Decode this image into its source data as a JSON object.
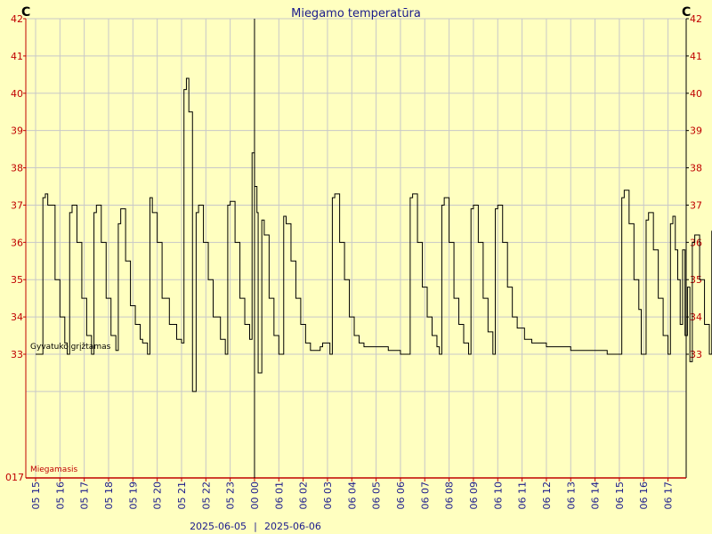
{
  "chart_data": {
    "type": "line",
    "title": "Miegamo temperatūra",
    "unit_left": "C",
    "unit_right": "C",
    "ylim": [
      32,
      42
    ],
    "y_ticks": [
      "42",
      "41",
      "40",
      "39",
      "38",
      "37",
      "36",
      "35",
      "34",
      "33"
    ],
    "y_bottom_label": "017",
    "x_ticks": [
      "05 15",
      "05 16",
      "05 17",
      "05 18",
      "05 19",
      "05 20",
      "05 21",
      "05 22",
      "05 23",
      "00 00",
      "06 01",
      "06 02",
      "06 03",
      "06 04",
      "06 05",
      "06 06",
      "06 07",
      "06 08",
      "06 09",
      "06 10",
      "06 11",
      "06 12",
      "06 13",
      "06 14",
      "06 15",
      "06 16",
      "06 17"
    ],
    "date_left": "2025-06-05",
    "date_right": "2025-06-06",
    "annotation_top": "Gyvatuko grįžtamas",
    "annotation_bottom": "Miegamasis",
    "grid": true,
    "series": [
      {
        "name": "",
        "color": "#000000",
        "points": [
          [
            0.0,
            33.0
          ],
          [
            0.2,
            33.0
          ],
          [
            0.3,
            37.2
          ],
          [
            0.4,
            37.3
          ],
          [
            0.5,
            37.0
          ],
          [
            0.8,
            35.0
          ],
          [
            1.0,
            34.0
          ],
          [
            1.2,
            33.3
          ],
          [
            1.3,
            33.0
          ],
          [
            1.4,
            36.8
          ],
          [
            1.5,
            37.0
          ],
          [
            1.7,
            36.0
          ],
          [
            1.9,
            34.5
          ],
          [
            2.1,
            33.5
          ],
          [
            2.3,
            33.0
          ],
          [
            2.4,
            36.8
          ],
          [
            2.5,
            37.0
          ],
          [
            2.7,
            36.0
          ],
          [
            2.9,
            34.5
          ],
          [
            3.1,
            33.5
          ],
          [
            3.3,
            33.1
          ],
          [
            3.4,
            36.5
          ],
          [
            3.5,
            36.9
          ],
          [
            3.7,
            35.5
          ],
          [
            3.9,
            34.3
          ],
          [
            4.1,
            33.8
          ],
          [
            4.3,
            33.4
          ],
          [
            4.4,
            33.3
          ],
          [
            4.6,
            33.0
          ],
          [
            4.7,
            37.2
          ],
          [
            4.8,
            36.8
          ],
          [
            5.0,
            36.0
          ],
          [
            5.2,
            34.5
          ],
          [
            5.5,
            33.8
          ],
          [
            5.8,
            33.4
          ],
          [
            6.0,
            33.3
          ],
          [
            6.1,
            40.1
          ],
          [
            6.2,
            40.4
          ],
          [
            6.3,
            39.5
          ],
          [
            6.45,
            32.0
          ],
          [
            6.6,
            36.8
          ],
          [
            6.7,
            37.0
          ],
          [
            6.9,
            36.0
          ],
          [
            7.1,
            35.0
          ],
          [
            7.3,
            34.0
          ],
          [
            7.6,
            33.4
          ],
          [
            7.8,
            33.0
          ],
          [
            7.9,
            37.0
          ],
          [
            8.0,
            37.1
          ],
          [
            8.2,
            36.0
          ],
          [
            8.4,
            34.5
          ],
          [
            8.6,
            33.8
          ],
          [
            8.8,
            33.4
          ],
          [
            8.9,
            38.4
          ],
          [
            9.0,
            37.5
          ],
          [
            9.1,
            36.8
          ],
          [
            9.15,
            32.5
          ],
          [
            9.3,
            36.6
          ],
          [
            9.4,
            36.2
          ],
          [
            9.6,
            34.5
          ],
          [
            9.8,
            33.5
          ],
          [
            10.0,
            33.0
          ],
          [
            10.2,
            36.7
          ],
          [
            10.3,
            36.5
          ],
          [
            10.5,
            35.5
          ],
          [
            10.7,
            34.5
          ],
          [
            10.9,
            33.8
          ],
          [
            11.1,
            33.3
          ],
          [
            11.3,
            33.1
          ],
          [
            11.7,
            33.2
          ],
          [
            11.8,
            33.3
          ],
          [
            12.0,
            33.3
          ],
          [
            12.1,
            33.0
          ],
          [
            12.2,
            37.2
          ],
          [
            12.3,
            37.3
          ],
          [
            12.5,
            36.0
          ],
          [
            12.7,
            35.0
          ],
          [
            12.9,
            34.0
          ],
          [
            13.1,
            33.5
          ],
          [
            13.3,
            33.3
          ],
          [
            13.5,
            33.2
          ],
          [
            14.0,
            33.2
          ],
          [
            14.5,
            33.1
          ],
          [
            15.0,
            33.0
          ],
          [
            15.3,
            33.0
          ],
          [
            15.4,
            37.2
          ],
          [
            15.5,
            37.3
          ],
          [
            15.7,
            36.0
          ],
          [
            15.9,
            34.8
          ],
          [
            16.1,
            34.0
          ],
          [
            16.3,
            33.5
          ],
          [
            16.5,
            33.2
          ],
          [
            16.6,
            33.0
          ],
          [
            16.7,
            37.0
          ],
          [
            16.8,
            37.2
          ],
          [
            17.0,
            36.0
          ],
          [
            17.2,
            34.5
          ],
          [
            17.4,
            33.8
          ],
          [
            17.6,
            33.3
          ],
          [
            17.8,
            33.0
          ],
          [
            17.9,
            36.9
          ],
          [
            18.0,
            37.0
          ],
          [
            18.2,
            36.0
          ],
          [
            18.4,
            34.5
          ],
          [
            18.6,
            33.6
          ],
          [
            18.8,
            33.0
          ],
          [
            18.9,
            36.9
          ],
          [
            19.0,
            37.0
          ],
          [
            19.2,
            36.0
          ],
          [
            19.4,
            34.8
          ],
          [
            19.6,
            34.0
          ],
          [
            19.8,
            33.7
          ],
          [
            20.1,
            33.4
          ],
          [
            20.4,
            33.3
          ],
          [
            21.0,
            33.2
          ],
          [
            21.5,
            33.2
          ],
          [
            22.0,
            33.1
          ],
          [
            23.0,
            33.1
          ],
          [
            23.5,
            33.0
          ],
          [
            24.0,
            33.0
          ],
          [
            24.1,
            37.2
          ],
          [
            24.2,
            37.4
          ],
          [
            24.4,
            36.5
          ],
          [
            24.6,
            35.0
          ],
          [
            24.8,
            34.2
          ],
          [
            24.9,
            33.0
          ],
          [
            25.1,
            36.6
          ],
          [
            25.2,
            36.8
          ],
          [
            25.4,
            35.8
          ],
          [
            25.6,
            34.5
          ],
          [
            25.8,
            33.5
          ],
          [
            26.0,
            33.0
          ],
          [
            26.1,
            36.5
          ],
          [
            26.2,
            36.7
          ],
          [
            26.3,
            35.8
          ],
          [
            26.4,
            35.0
          ],
          [
            26.5,
            33.8
          ],
          [
            26.6,
            35.8
          ],
          [
            26.7,
            33.5
          ],
          [
            26.8,
            34.8
          ],
          [
            26.9,
            32.8
          ],
          [
            27.0,
            36.0
          ],
          [
            27.1,
            36.2
          ],
          [
            27.3,
            35.0
          ],
          [
            27.5,
            33.8
          ],
          [
            27.7,
            33.0
          ],
          [
            27.8,
            36.3
          ],
          [
            27.9,
            36.5
          ],
          [
            28.1,
            35.0
          ],
          [
            28.3,
            33.8
          ],
          [
            28.5,
            33.0
          ],
          [
            28.6,
            37.2
          ],
          [
            28.7,
            37.4
          ],
          [
            28.9,
            36.5
          ],
          [
            29.1,
            35.0
          ],
          [
            29.3,
            34.2
          ],
          [
            29.6,
            33.8
          ],
          [
            29.9,
            33.6
          ],
          [
            30.2,
            33.5
          ],
          [
            31.0,
            33.4
          ],
          [
            32.0,
            33.4
          ],
          [
            33.0,
            33.4
          ],
          [
            33.5,
            33.3
          ],
          [
            33.8,
            33.0
          ],
          [
            33.9,
            36.8
          ],
          [
            34.0,
            36.9
          ],
          [
            34.2,
            36.0
          ],
          [
            34.4,
            34.5
          ],
          [
            34.6,
            33.8
          ],
          [
            34.8,
            33.4
          ],
          [
            35.0,
            33.3
          ],
          [
            35.3,
            33.1
          ],
          [
            35.6,
            33.0
          ],
          [
            36.0,
            33.0
          ],
          [
            36.1,
            36.7
          ],
          [
            36.2,
            36.9
          ],
          [
            36.4,
            36.0
          ],
          [
            36.6,
            34.8
          ],
          [
            36.8,
            33.8
          ],
          [
            37.0,
            33.0
          ],
          [
            37.1,
            36.8
          ],
          [
            37.2,
            37.0
          ],
          [
            37.4,
            36.0
          ],
          [
            37.6,
            34.8
          ],
          [
            37.8,
            33.8
          ],
          [
            38.0,
            33.0
          ],
          [
            38.1,
            36.8
          ],
          [
            38.2,
            36.9
          ],
          [
            38.3,
            36.5
          ],
          [
            38.4,
            35.7
          ],
          [
            38.5,
            41.6
          ],
          [
            38.55,
            41.7
          ],
          [
            38.6,
            37.3
          ],
          [
            38.65,
            34.2
          ],
          [
            38.7,
            37.0
          ],
          [
            38.8,
            32.8
          ],
          [
            38.9,
            37.4
          ],
          [
            39.0,
            37.6
          ],
          [
            39.2,
            36.8
          ],
          [
            39.4,
            35.5
          ],
          [
            39.6,
            34.5
          ],
          [
            39.8,
            34.0
          ],
          [
            40.0,
            33.8
          ],
          [
            40.3,
            33.6
          ],
          [
            40.6,
            33.5
          ],
          [
            41.0,
            33.5
          ],
          [
            41.5,
            33.4
          ],
          [
            42.0,
            33.3
          ],
          [
            42.2,
            33.2
          ],
          [
            42.4,
            33.3
          ],
          [
            42.6,
            33.2
          ],
          [
            42.8,
            33.2
          ]
        ]
      }
    ]
  }
}
